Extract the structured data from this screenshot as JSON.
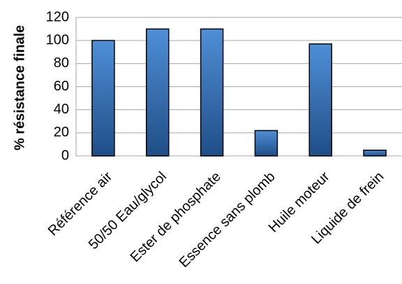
{
  "chart_data": {
    "type": "bar",
    "title": "",
    "xlabel": "",
    "ylabel": "% résistance finale",
    "categories": [
      "Référence air",
      "50/50 Eau/glycol",
      "Ester de phosphate",
      "Essence sans plomb",
      "Huile moteur",
      "Liquide de frein"
    ],
    "values": [
      100,
      110,
      110,
      22,
      97,
      5
    ],
    "ylim": [
      0,
      120
    ],
    "yticks": [
      0,
      20,
      40,
      60,
      80,
      100,
      120
    ],
    "grid": true,
    "legend": "none",
    "colors": {
      "bar_light": "#4f8fd6",
      "bar_dark": "#1f4e86",
      "bar_edge": "#000000",
      "grid": "#a6a6a6"
    }
  }
}
